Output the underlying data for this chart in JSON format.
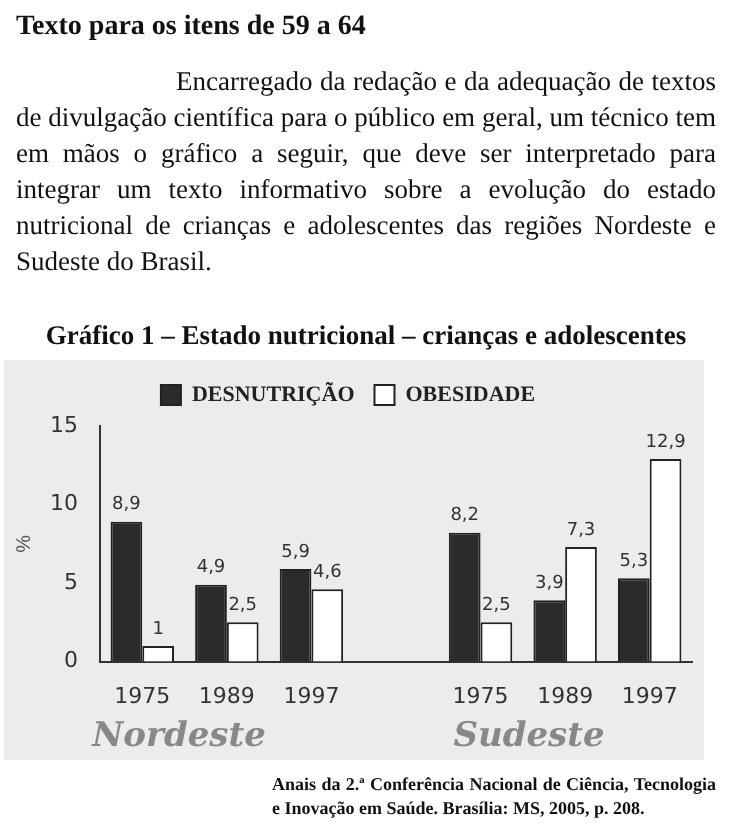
{
  "chart_data": {
    "type": "bar",
    "title": "Gráfico 1 – Estado nutricional – crianças e adolescentes",
    "ylabel": "%",
    "categories": [
      "1975",
      "1989",
      "1997",
      null,
      "1975",
      "1989",
      "1997"
    ],
    "series": [
      {
        "name": "DESNUTRIÇÃO",
        "color": "#2b2b2b",
        "values": [
          8.9,
          4.9,
          5.9,
          null,
          8.2,
          3.9,
          5.3
        ],
        "value_labels": [
          "8,9",
          "4,9",
          "5,9",
          null,
          "8,2",
          "3,9",
          "5,3"
        ]
      },
      {
        "name": "OBESIDADE",
        "color": "#ffffff",
        "values": [
          1,
          2.5,
          4.6,
          null,
          2.5,
          7.3,
          12.9
        ],
        "value_labels": [
          "1",
          "2,5",
          "4,6",
          null,
          "2,5",
          "7,3",
          "12,9"
        ]
      }
    ],
    "ylim": [
      0,
      15
    ],
    "yticks": [
      0,
      5,
      10,
      15
    ],
    "grid": false,
    "legend": "top",
    "annotations": [
      "Texto para os itens de 59 a 64",
      "Encarregado da redação e da adequação de textos de divulgação científica para o público em geral, um técnico tem em mãos o gráfico a seguir, que deve ser interpretado para integrar um texto informativo sobre a evolução do estado nutricional de crianças e adolescentes das regiões Nordeste e Sudeste do Brasil.",
      "Nordeste",
      "Sudeste",
      "Anais da 2.ª Conferência Nacional de Ciência, Tecnologia e Inovação em Saúde. Brasília: MS, 2005, p. 208."
    ]
  }
}
